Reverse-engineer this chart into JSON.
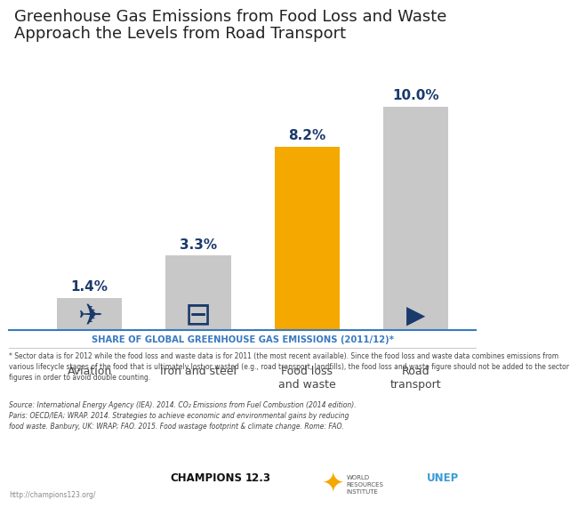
{
  "title_line1": "Greenhouse Gas Emissions from Food Loss and Waste",
  "title_line2": "Approach the Levels from Road Transport",
  "categories": [
    "Aviation",
    "Iron and steel",
    "Food loss\nand waste",
    "Road\ntransport"
  ],
  "values": [
    1.4,
    3.3,
    8.2,
    10.0
  ],
  "bar_colors": [
    "#c8c8c8",
    "#c8c8c8",
    "#f5a800",
    "#c8c8c8"
  ],
  "label_color": "#1a3a6b",
  "label_values": [
    "1.4%",
    "3.3%",
    "8.2%",
    "10.0%"
  ],
  "section_label": "SHARE OF GLOBAL GREENHOUSE GAS EMISSIONS (2011/12)*",
  "section_label_color": "#3a7abf",
  "footnote": "* Sector data is for 2012 while the food loss and waste data is for 2011 (the most recent available). Since the food loss and waste data combines emissions from\nvarious lifecycle stages of the food that is ultimately lost or wasted (e.g., road transport, landfills), the food loss and waste figure should not be added to the sector\nfigures in order to avoid double counting.",
  "source_label": "Source:",
  "source_body": " International Energy Agency (IEA). 2014. CO₂ Emissions from Fuel Combustion (2014 edition).\nParis: OECD/IEA; WRAP. 2014. Strategies to achieve economic and environmental gains by reducing\nfood waste. Banbury, UK: WRAP; FAO. 2015. Food wastage footprint & climate change. Rome: FAO.",
  "url": "http://champions123.org/",
  "bg_color": "#ffffff",
  "ylim": [
    0,
    11.5
  ],
  "bar_width": 0.6,
  "title_fontsize": 13,
  "tick_label_fontsize": 9,
  "value_label_fontsize": 11,
  "icon_color_dark": "#1a3a6b",
  "icon_color_gold": "#f5a800",
  "sep_color_blue": "#3a7abf",
  "sep_color_gray": "#cccccc",
  "world_resources_color": "#555555",
  "unep_color": "#3a9bd5"
}
